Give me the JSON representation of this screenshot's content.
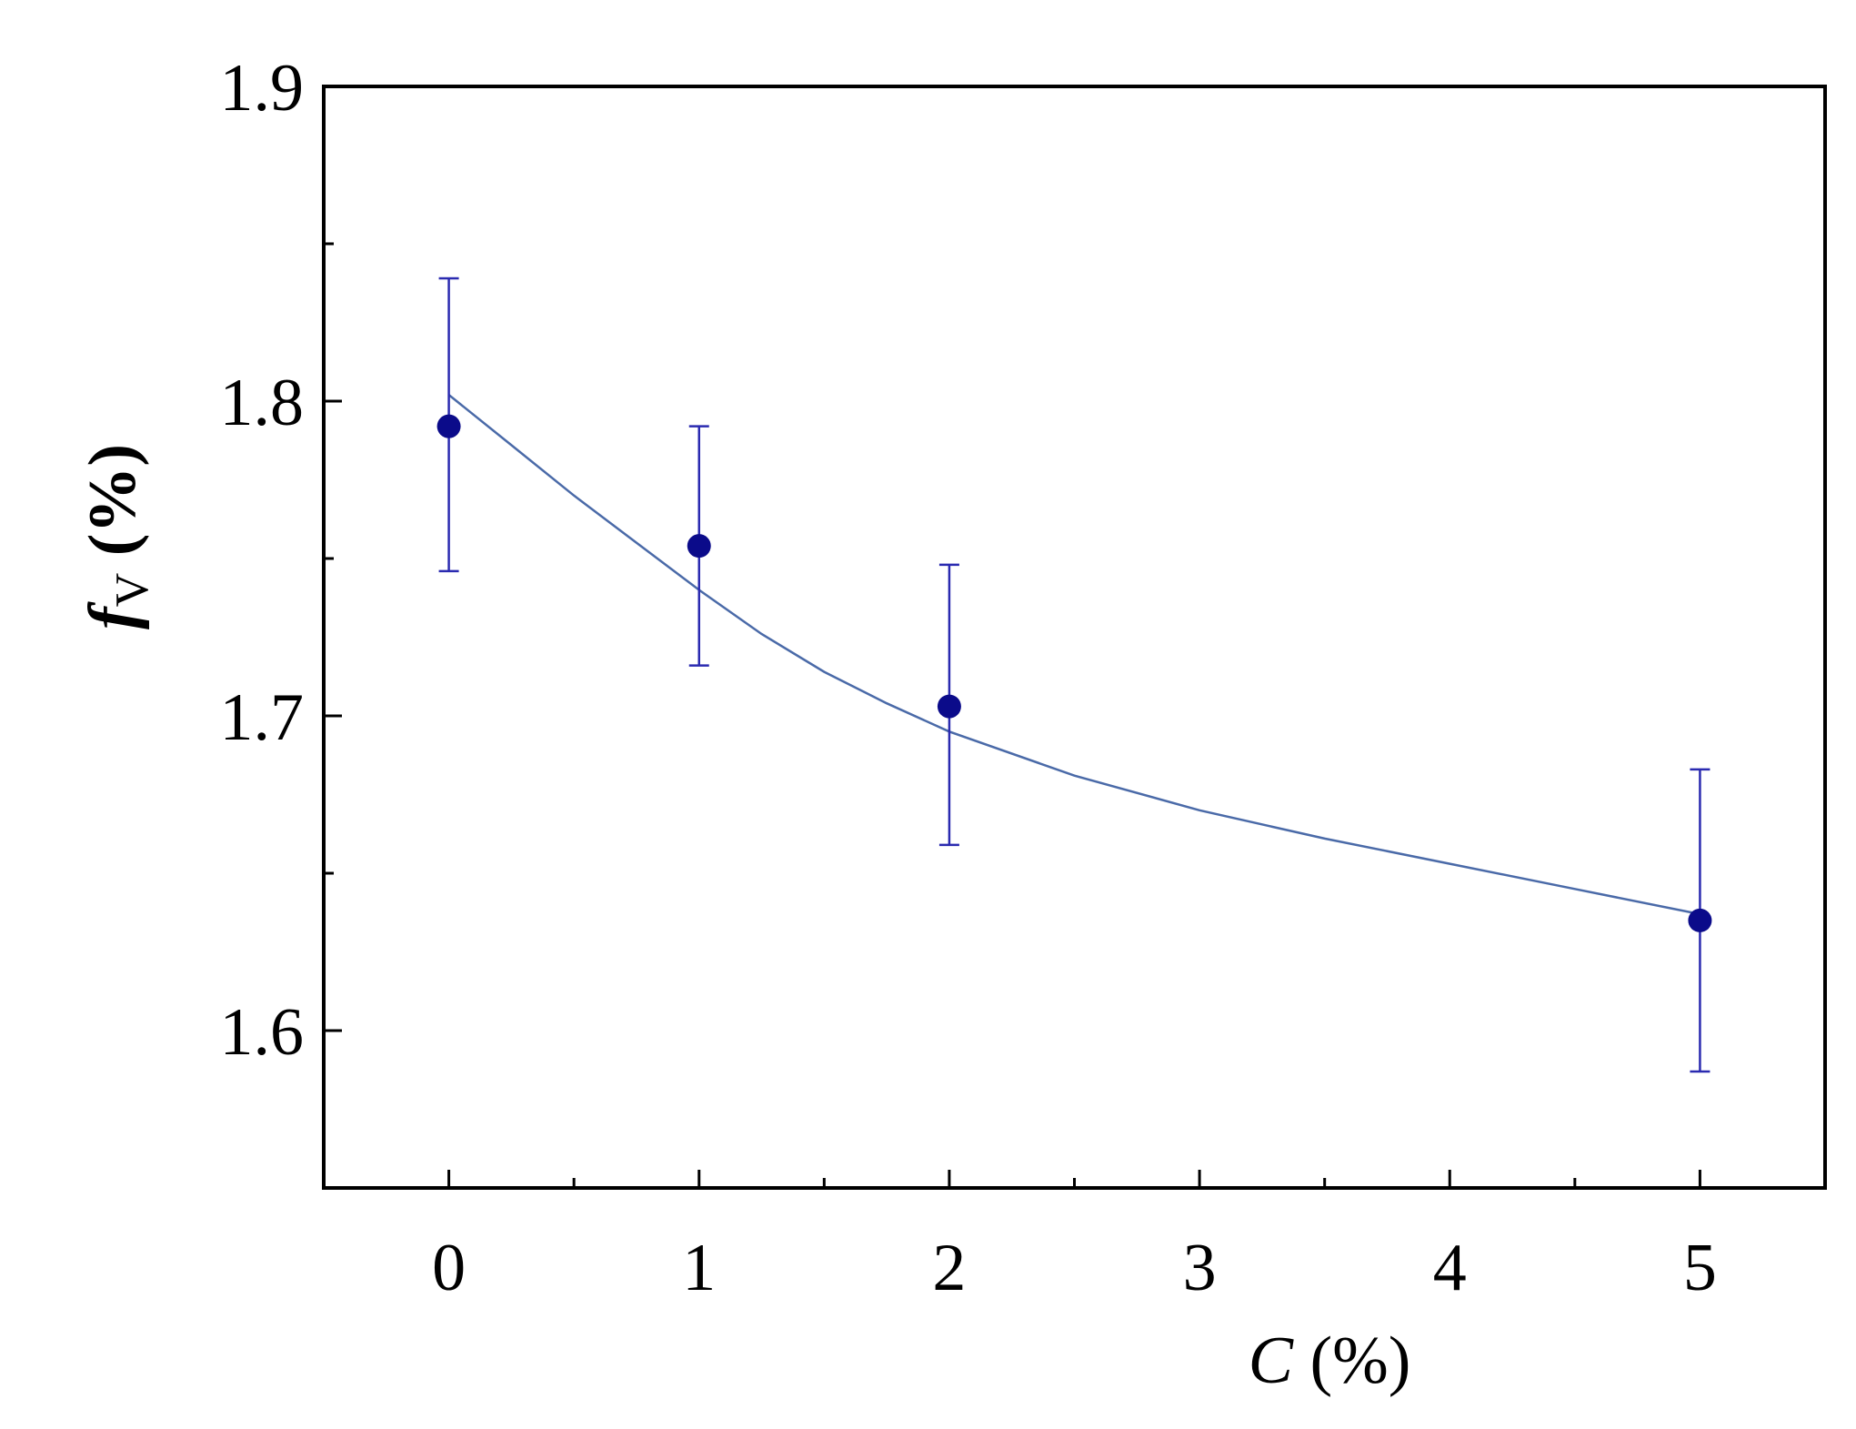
{
  "chart_data": {
    "type": "scatter",
    "title": "",
    "x_var": "C",
    "x_unit": "(%)",
    "y_var": "f",
    "y_sub": "V",
    "y_unit": "(%)",
    "xlim": [
      -0.5,
      5.5
    ],
    "ylim": [
      1.55,
      1.9
    ],
    "x_ticks": [
      0,
      1,
      2,
      3,
      4,
      5
    ],
    "x_minor_ticks": [
      0.5,
      1.5,
      2.5,
      3.5,
      4.5
    ],
    "y_ticks": [
      1.6,
      1.7,
      1.8,
      1.9
    ],
    "y_minor_ticks": [
      1.65,
      1.75,
      1.85
    ],
    "grid": false,
    "series": [
      {
        "x": [
          0,
          1,
          2,
          5
        ],
        "y": [
          1.792,
          1.754,
          1.703,
          1.635
        ],
        "err_low": [
          1.746,
          1.716,
          1.659,
          1.587
        ],
        "err_high": [
          1.839,
          1.792,
          1.748,
          1.683
        ]
      }
    ],
    "fit_curve": {
      "x": [
        0,
        0.25,
        0.5,
        0.75,
        1,
        1.25,
        1.5,
        1.75,
        2,
        2.5,
        3,
        3.5,
        4,
        4.5,
        5
      ],
      "y": [
        1.802,
        1.786,
        1.77,
        1.755,
        1.74,
        1.726,
        1.714,
        1.704,
        1.695,
        1.681,
        1.67,
        1.661,
        1.653,
        1.645,
        1.637
      ]
    },
    "colors": {
      "points": "#0b0b8a",
      "error_bars": "#2a2ab0",
      "fit_curve": "#4a6aa8",
      "axes": "#000000"
    }
  }
}
